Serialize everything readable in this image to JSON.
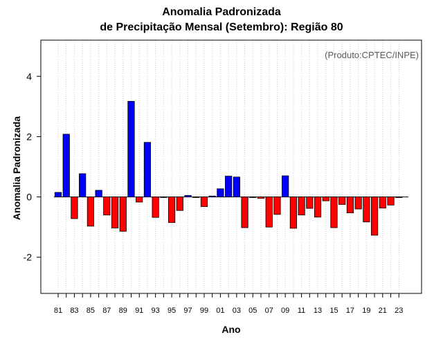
{
  "chart_data": {
    "type": "bar",
    "title_line1": "Anomalia Padronizada",
    "title_line2": "de Precipitação Mensal (Setembro): Região 80",
    "credit": "(Produto:CPTEC/INPE)",
    "xlabel": "Ano",
    "ylabel": "Anomalia Padronizada",
    "ylim": [
      -3.2,
      5.2
    ],
    "yticks": [
      -2,
      0,
      2,
      4
    ],
    "grid": "vertical dotted",
    "colors": {
      "positive": "#0000ff",
      "negative": "#ff0000",
      "outline": "#000000"
    },
    "categories": [
      "81",
      "82",
      "83",
      "84",
      "85",
      "86",
      "87",
      "88",
      "89",
      "90",
      "91",
      "92",
      "93",
      "94",
      "95",
      "96",
      "97",
      "98",
      "99",
      "00",
      "01",
      "02",
      "03",
      "04",
      "05",
      "06",
      "07",
      "08",
      "09",
      "10",
      "11",
      "12",
      "13",
      "14",
      "15",
      "16",
      "17",
      "18",
      "19",
      "20",
      "21",
      "22",
      "23"
    ],
    "x_tick_labels": [
      "81",
      "83",
      "85",
      "87",
      "89",
      "91",
      "93",
      "95",
      "97",
      "99",
      "01",
      "03",
      "05",
      "07",
      "09",
      "11",
      "13",
      "15",
      "17",
      "19",
      "21",
      "23"
    ],
    "values": [
      0.15,
      2.08,
      -0.72,
      0.77,
      -0.97,
      0.22,
      -0.6,
      -1.03,
      -1.14,
      3.17,
      -0.17,
      1.81,
      -0.68,
      -0.02,
      -0.85,
      -0.45,
      0.05,
      -0.02,
      -0.32,
      0.03,
      0.27,
      0.69,
      0.66,
      -1.02,
      -0.02,
      -0.05,
      -1.0,
      -0.58,
      0.7,
      -1.04,
      -0.6,
      -0.38,
      -0.67,
      -0.13,
      -1.02,
      -0.25,
      -0.53,
      -0.4,
      -0.83,
      -1.27,
      -0.37,
      -0.27,
      -0.02
    ]
  }
}
